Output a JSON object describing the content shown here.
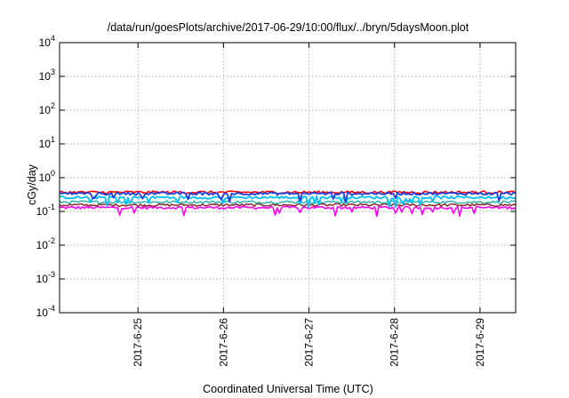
{
  "chart_data": {
    "type": "line",
    "title": "/data/run/goesPlots/archive/2017-06-29/10:00/flux/../bryn/5daysMoon.plot",
    "xlabel": "Coordinated Universal Time (UTC)",
    "ylabel": "cGy/day",
    "yscale": "log",
    "ylim": [
      0.0001,
      10000
    ],
    "xlim": [
      "2017-06-24T02:00",
      "2017-06-29T10:00"
    ],
    "y_ticks": [
      {
        "value": 0.0001,
        "base": "10",
        "exp": "-4"
      },
      {
        "value": 0.001,
        "base": "10",
        "exp": "-3"
      },
      {
        "value": 0.01,
        "base": "10",
        "exp": "-2"
      },
      {
        "value": 0.1,
        "base": "10",
        "exp": "-1"
      },
      {
        "value": 1,
        "base": "10",
        "exp": "0"
      },
      {
        "value": 10,
        "base": "10",
        "exp": "1"
      },
      {
        "value": 100,
        "base": "10",
        "exp": "2"
      },
      {
        "value": 1000,
        "base": "10",
        "exp": "3"
      },
      {
        "value": 10000,
        "base": "10",
        "exp": "4"
      }
    ],
    "x_ticks": [
      {
        "value": "2017-06-25T00:00",
        "label": "2017-6-25"
      },
      {
        "value": "2017-06-26T00:00",
        "label": "2017-6-26"
      },
      {
        "value": "2017-06-27T00:00",
        "label": "2017-6-27"
      },
      {
        "value": "2017-06-28T00:00",
        "label": "2017-6-28"
      },
      {
        "value": "2017-06-29T00:00",
        "label": "2017-6-29"
      }
    ],
    "grid": true,
    "series_style": [
      {
        "color": "#ff00ff",
        "level": 0.13,
        "dips": true,
        "width": 1.6
      },
      {
        "color": "#8b1a1a",
        "level": 0.155,
        "dips": false,
        "width": 1.4
      },
      {
        "color": "#20b2aa",
        "level": 0.19,
        "dips": false,
        "width": 1.4
      },
      {
        "color": "#00bfff",
        "level": 0.26,
        "dips": true,
        "width": 1.8
      },
      {
        "color": "#ff0000",
        "level": 0.37,
        "dips": false,
        "width": 1.6
      },
      {
        "color": "#1e3cdc",
        "level": 0.34,
        "dips": true,
        "width": 1.8
      }
    ]
  }
}
